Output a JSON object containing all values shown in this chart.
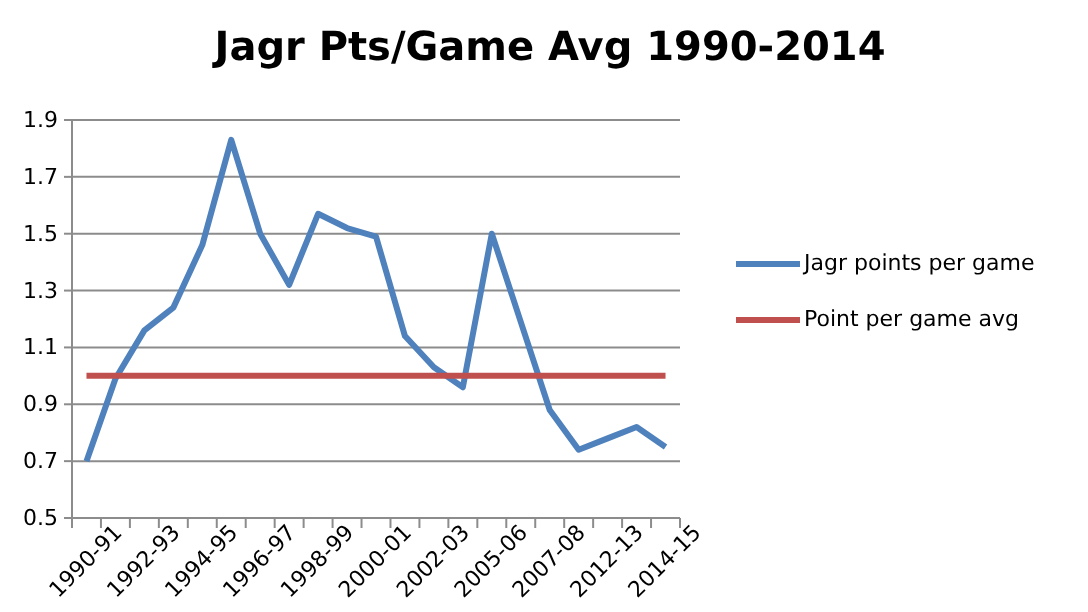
{
  "chart_data": {
    "type": "line",
    "title": "Jagr Pts/Game Avg 1990-2014",
    "categories": [
      "1990-91",
      null,
      "1992-93",
      null,
      "1994-95",
      null,
      "1996-97",
      null,
      "1998-99",
      null,
      "2000-01",
      null,
      "2002-03",
      null,
      "2005-06",
      null,
      "2007-08",
      null,
      "2012-13",
      null,
      "2014-15"
    ],
    "series": [
      {
        "name": "Jagr points per game",
        "color": "#4f81bd",
        "values": [
          0.7,
          0.99,
          1.16,
          1.24,
          1.46,
          1.83,
          1.5,
          1.32,
          1.57,
          1.52,
          1.49,
          1.14,
          1.03,
          0.96,
          1.5,
          1.19,
          0.88,
          0.74,
          0.78,
          0.82,
          0.75
        ]
      },
      {
        "name": "Point per game avg",
        "color": "#c0504d",
        "values": [
          1,
          1,
          1,
          1,
          1,
          1,
          1,
          1,
          1,
          1,
          1,
          1,
          1,
          1,
          1,
          1,
          1,
          1,
          1,
          1,
          1
        ]
      }
    ],
    "ylim": [
      0.5,
      1.9
    ],
    "yticks": [
      {
        "value": 0.5,
        "label": "0.5"
      },
      {
        "value": 0.7,
        "label": "0.7"
      },
      {
        "value": 0.9,
        "label": "0.9"
      },
      {
        "value": 1.1,
        "label": "1.1"
      },
      {
        "value": 1.3,
        "label": "1.3"
      },
      {
        "value": 1.5,
        "label": "1.5"
      },
      {
        "value": 1.7,
        "label": "1.7"
      },
      {
        "value": 1.9,
        "label": "1.9"
      }
    ],
    "grid": "y",
    "legend": "right",
    "marker": "none",
    "line_style": "solid"
  }
}
